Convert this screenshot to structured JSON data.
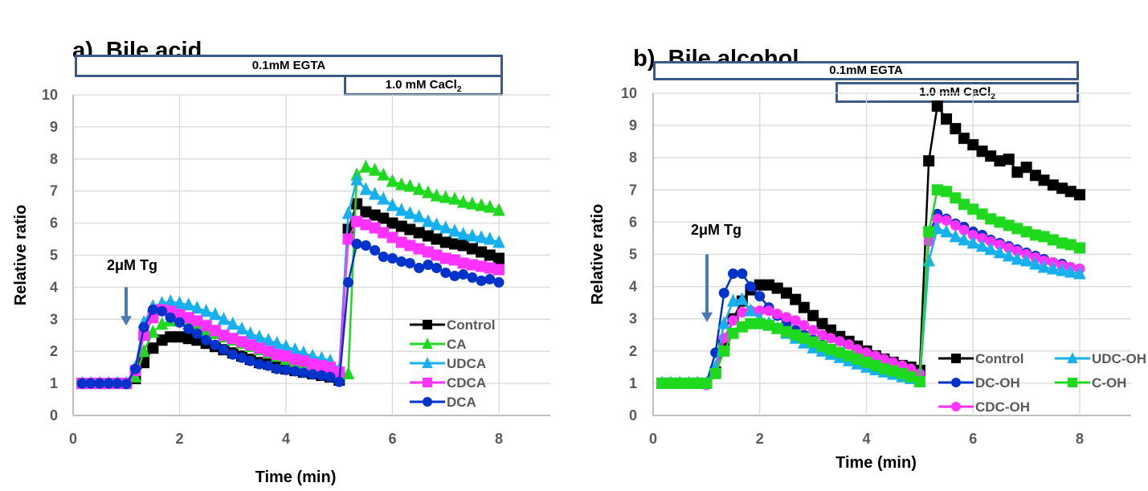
{
  "chart_data": [
    {
      "type": "line",
      "panel_label": "a)",
      "title": "Bile acid",
      "xlabel": "Time (min)",
      "ylabel": "Relative ratio",
      "xlim": [
        0,
        9
      ],
      "ylim": [
        0,
        10
      ],
      "x_ticks": [
        "0",
        "2",
        "4",
        "6",
        "8"
      ],
      "y_ticks": [
        "0",
        "1",
        "2",
        "3",
        "4",
        "5",
        "6",
        "7",
        "8",
        "9",
        "10"
      ],
      "grid": true,
      "legend_position": "bottom-right",
      "condition_bars": [
        {
          "label": "0.1mM EGTA",
          "x_start": 0,
          "x_end": 8
        },
        {
          "label": "1.0 mM CaCl",
          "subscript": "2",
          "x_start": 5,
          "x_end": 8
        }
      ],
      "annotation": {
        "text": "2μM Tg",
        "x": 1.0,
        "y_arrow_top": 4.0,
        "y_arrow_bottom": 2.8
      },
      "x": [
        0.17,
        0.33,
        0.5,
        0.67,
        0.83,
        1.0,
        1.17,
        1.33,
        1.5,
        1.67,
        1.83,
        2.0,
        2.17,
        2.33,
        2.5,
        2.67,
        2.83,
        3.0,
        3.17,
        3.33,
        3.5,
        3.67,
        3.83,
        4.0,
        4.17,
        4.33,
        4.5,
        4.67,
        4.83,
        5.0,
        5.17,
        5.33,
        5.5,
        5.67,
        5.83,
        6.0,
        6.17,
        6.33,
        6.5,
        6.67,
        6.83,
        7.0,
        7.17,
        7.33,
        7.5,
        7.67,
        7.83,
        8.0
      ],
      "series": [
        {
          "name": "Control",
          "color": "#000000",
          "marker": "square",
          "values": [
            1.0,
            1.0,
            1.0,
            1.0,
            1.0,
            1.0,
            1.15,
            1.65,
            2.1,
            2.35,
            2.45,
            2.45,
            2.4,
            2.35,
            2.25,
            2.15,
            2.05,
            1.95,
            1.85,
            1.75,
            1.65,
            1.6,
            1.5,
            1.45,
            1.4,
            1.35,
            1.3,
            1.25,
            1.2,
            1.1,
            5.8,
            6.6,
            6.35,
            6.25,
            6.15,
            6.0,
            5.9,
            5.8,
            5.7,
            5.6,
            5.5,
            5.4,
            5.35,
            5.3,
            5.2,
            5.1,
            5.0,
            4.9
          ]
        },
        {
          "name": "CA",
          "color": "#1ed91e",
          "marker": "triangle",
          "values": [
            1.0,
            1.0,
            1.0,
            1.0,
            1.0,
            1.0,
            1.2,
            2.0,
            2.6,
            2.85,
            2.95,
            2.95,
            2.85,
            2.75,
            2.65,
            2.55,
            2.45,
            2.35,
            2.25,
            2.15,
            2.05,
            1.95,
            1.85,
            1.75,
            1.68,
            1.6,
            1.52,
            1.45,
            1.38,
            1.3,
            1.3,
            7.5,
            7.75,
            7.65,
            7.5,
            7.3,
            7.2,
            7.15,
            7.05,
            6.95,
            6.85,
            6.8,
            6.75,
            6.65,
            6.6,
            6.55,
            6.5,
            6.4
          ]
        },
        {
          "name": "UDCA",
          "color": "#17b0ee",
          "marker": "triangle",
          "values": [
            1.0,
            1.0,
            1.0,
            1.0,
            1.0,
            1.0,
            1.5,
            2.9,
            3.4,
            3.5,
            3.55,
            3.5,
            3.45,
            3.35,
            3.25,
            3.15,
            3.0,
            2.85,
            2.7,
            2.55,
            2.45,
            2.35,
            2.25,
            2.15,
            2.05,
            1.95,
            1.85,
            1.78,
            1.7,
            1.45,
            6.3,
            7.35,
            7.05,
            6.9,
            6.75,
            6.55,
            6.4,
            6.3,
            6.2,
            6.05,
            5.95,
            5.85,
            5.75,
            5.65,
            5.6,
            5.55,
            5.5,
            5.4
          ]
        },
        {
          "name": "CDCA",
          "color": "#ff33ff",
          "marker": "square",
          "values": [
            1.0,
            1.0,
            1.0,
            1.0,
            1.0,
            1.0,
            1.4,
            2.5,
            3.05,
            3.3,
            3.25,
            3.15,
            3.05,
            2.95,
            2.8,
            2.65,
            2.5,
            2.4,
            2.3,
            2.2,
            2.1,
            2.0,
            1.9,
            1.85,
            1.75,
            1.7,
            1.6,
            1.55,
            1.5,
            1.35,
            5.5,
            6.05,
            5.95,
            5.85,
            5.7,
            5.55,
            5.4,
            5.3,
            5.2,
            5.1,
            5.0,
            4.9,
            4.85,
            4.75,
            4.7,
            4.65,
            4.6,
            4.55
          ]
        },
        {
          "name": "DCA",
          "color": "#0033cc",
          "marker": "circle",
          "values": [
            1.0,
            1.0,
            1.0,
            1.0,
            1.0,
            0.98,
            1.45,
            2.75,
            3.3,
            3.25,
            3.05,
            2.9,
            2.7,
            2.55,
            2.35,
            2.2,
            2.05,
            1.9,
            1.8,
            1.7,
            1.6,
            1.55,
            1.45,
            1.42,
            1.38,
            1.33,
            1.28,
            1.25,
            1.2,
            1.05,
            4.15,
            5.35,
            5.3,
            5.15,
            4.95,
            4.9,
            4.8,
            4.75,
            4.6,
            4.7,
            4.6,
            4.45,
            4.35,
            4.4,
            4.3,
            4.2,
            4.25,
            4.15
          ]
        }
      ]
    },
    {
      "type": "line",
      "panel_label": "b)",
      "title": "Bile alcohol",
      "xlabel": "Time (min)",
      "ylabel": "Relative ratio",
      "xlim": [
        0,
        9
      ],
      "ylim": [
        0,
        10
      ],
      "x_ticks": [
        "0",
        "2",
        "4",
        "6",
        "8"
      ],
      "y_ticks": [
        "0",
        "1",
        "2",
        "3",
        "4",
        "5",
        "6",
        "7",
        "8",
        "9",
        "10"
      ],
      "grid": true,
      "legend_position": "bottom-right",
      "condition_bars": [
        {
          "label": "0.1mM EGTA",
          "x_start": 0,
          "x_end": 8
        },
        {
          "label": "1.0 mM CaCl",
          "subscript": "2",
          "x_start": 5,
          "x_end": 8
        }
      ],
      "annotation": {
        "text": "2μM Tg",
        "x": 1.0,
        "y_arrow_top": 5.0,
        "y_arrow_bottom": 2.9
      },
      "x": [
        0.17,
        0.33,
        0.5,
        0.67,
        0.83,
        1.0,
        1.17,
        1.33,
        1.5,
        1.67,
        1.83,
        2.0,
        2.17,
        2.33,
        2.5,
        2.67,
        2.83,
        3.0,
        3.17,
        3.33,
        3.5,
        3.67,
        3.83,
        4.0,
        4.17,
        4.33,
        4.5,
        4.67,
        4.83,
        5.0,
        5.17,
        5.33,
        5.5,
        5.67,
        5.83,
        6.0,
        6.17,
        6.33,
        6.5,
        6.67,
        6.83,
        7.0,
        7.17,
        7.33,
        7.5,
        7.67,
        7.83,
        8.0
      ],
      "series": [
        {
          "name": "Control",
          "color": "#000000",
          "marker": "square",
          "values": [
            1.0,
            1.0,
            1.0,
            1.0,
            1.0,
            1.0,
            1.35,
            2.2,
            3.0,
            3.55,
            3.9,
            4.05,
            4.05,
            3.95,
            3.8,
            3.6,
            3.35,
            3.1,
            2.85,
            2.65,
            2.45,
            2.3,
            2.15,
            2.0,
            1.85,
            1.75,
            1.65,
            1.55,
            1.5,
            1.4,
            7.9,
            9.6,
            9.2,
            8.9,
            8.6,
            8.4,
            8.2,
            8.05,
            7.9,
            7.95,
            7.55,
            7.7,
            7.45,
            7.3,
            7.15,
            7.05,
            6.95,
            6.85
          ]
        },
        {
          "name": "DC-OH",
          "color": "#0033cc",
          "marker": "circle",
          "values": [
            1.0,
            1.0,
            1.0,
            1.0,
            1.0,
            1.0,
            1.95,
            3.8,
            4.4,
            4.4,
            4.0,
            3.7,
            3.35,
            3.1,
            2.85,
            2.65,
            2.5,
            2.35,
            2.2,
            2.05,
            1.95,
            1.85,
            1.75,
            1.65,
            1.55,
            1.5,
            1.42,
            1.35,
            1.3,
            1.2,
            5.6,
            6.25,
            6.1,
            5.95,
            5.85,
            5.7,
            5.6,
            5.45,
            5.35,
            5.25,
            5.15,
            5.05,
            4.95,
            4.85,
            4.75,
            4.7,
            4.6,
            4.55
          ]
        },
        {
          "name": "CDC-OH",
          "color": "#ff33ff",
          "marker": "circle",
          "values": [
            1.0,
            1.0,
            1.0,
            1.0,
            1.0,
            0.95,
            1.35,
            2.4,
            2.95,
            3.2,
            3.25,
            3.25,
            3.25,
            3.15,
            3.05,
            2.95,
            2.8,
            2.65,
            2.5,
            2.4,
            2.3,
            2.2,
            2.05,
            1.95,
            1.85,
            1.75,
            1.65,
            1.55,
            1.45,
            1.3,
            5.4,
            6.1,
            6.05,
            5.9,
            5.75,
            5.6,
            5.5,
            5.4,
            5.3,
            5.2,
            5.1,
            5.0,
            4.9,
            4.8,
            4.75,
            4.65,
            4.6,
            4.55
          ]
        },
        {
          "name": "UDC-OH",
          "color": "#17b0ee",
          "marker": "triangle",
          "values": [
            1.0,
            1.0,
            1.0,
            1.0,
            1.0,
            1.0,
            1.5,
            2.85,
            3.55,
            3.6,
            3.25,
            3.0,
            2.85,
            2.7,
            2.55,
            2.4,
            2.25,
            2.1,
            2.0,
            1.9,
            1.8,
            1.7,
            1.6,
            1.5,
            1.42,
            1.35,
            1.28,
            1.2,
            1.15,
            1.05,
            4.8,
            5.8,
            5.7,
            5.55,
            5.45,
            5.35,
            5.25,
            5.15,
            5.05,
            4.95,
            4.85,
            4.8,
            4.7,
            4.6,
            4.55,
            4.5,
            4.45,
            4.4
          ]
        },
        {
          "name": "C-OH",
          "color": "#1ed91e",
          "marker": "square",
          "values": [
            1.0,
            1.0,
            1.0,
            1.0,
            1.0,
            1.0,
            1.3,
            2.0,
            2.55,
            2.75,
            2.85,
            2.85,
            2.8,
            2.7,
            2.6,
            2.5,
            2.4,
            2.28,
            2.15,
            2.05,
            1.95,
            1.85,
            1.75,
            1.65,
            1.55,
            1.45,
            1.38,
            1.3,
            1.2,
            1.05,
            5.7,
            7.0,
            6.95,
            6.75,
            6.55,
            6.4,
            6.25,
            6.1,
            6.0,
            5.9,
            5.8,
            5.7,
            5.6,
            5.55,
            5.45,
            5.35,
            5.3,
            5.2
          ]
        }
      ]
    }
  ]
}
